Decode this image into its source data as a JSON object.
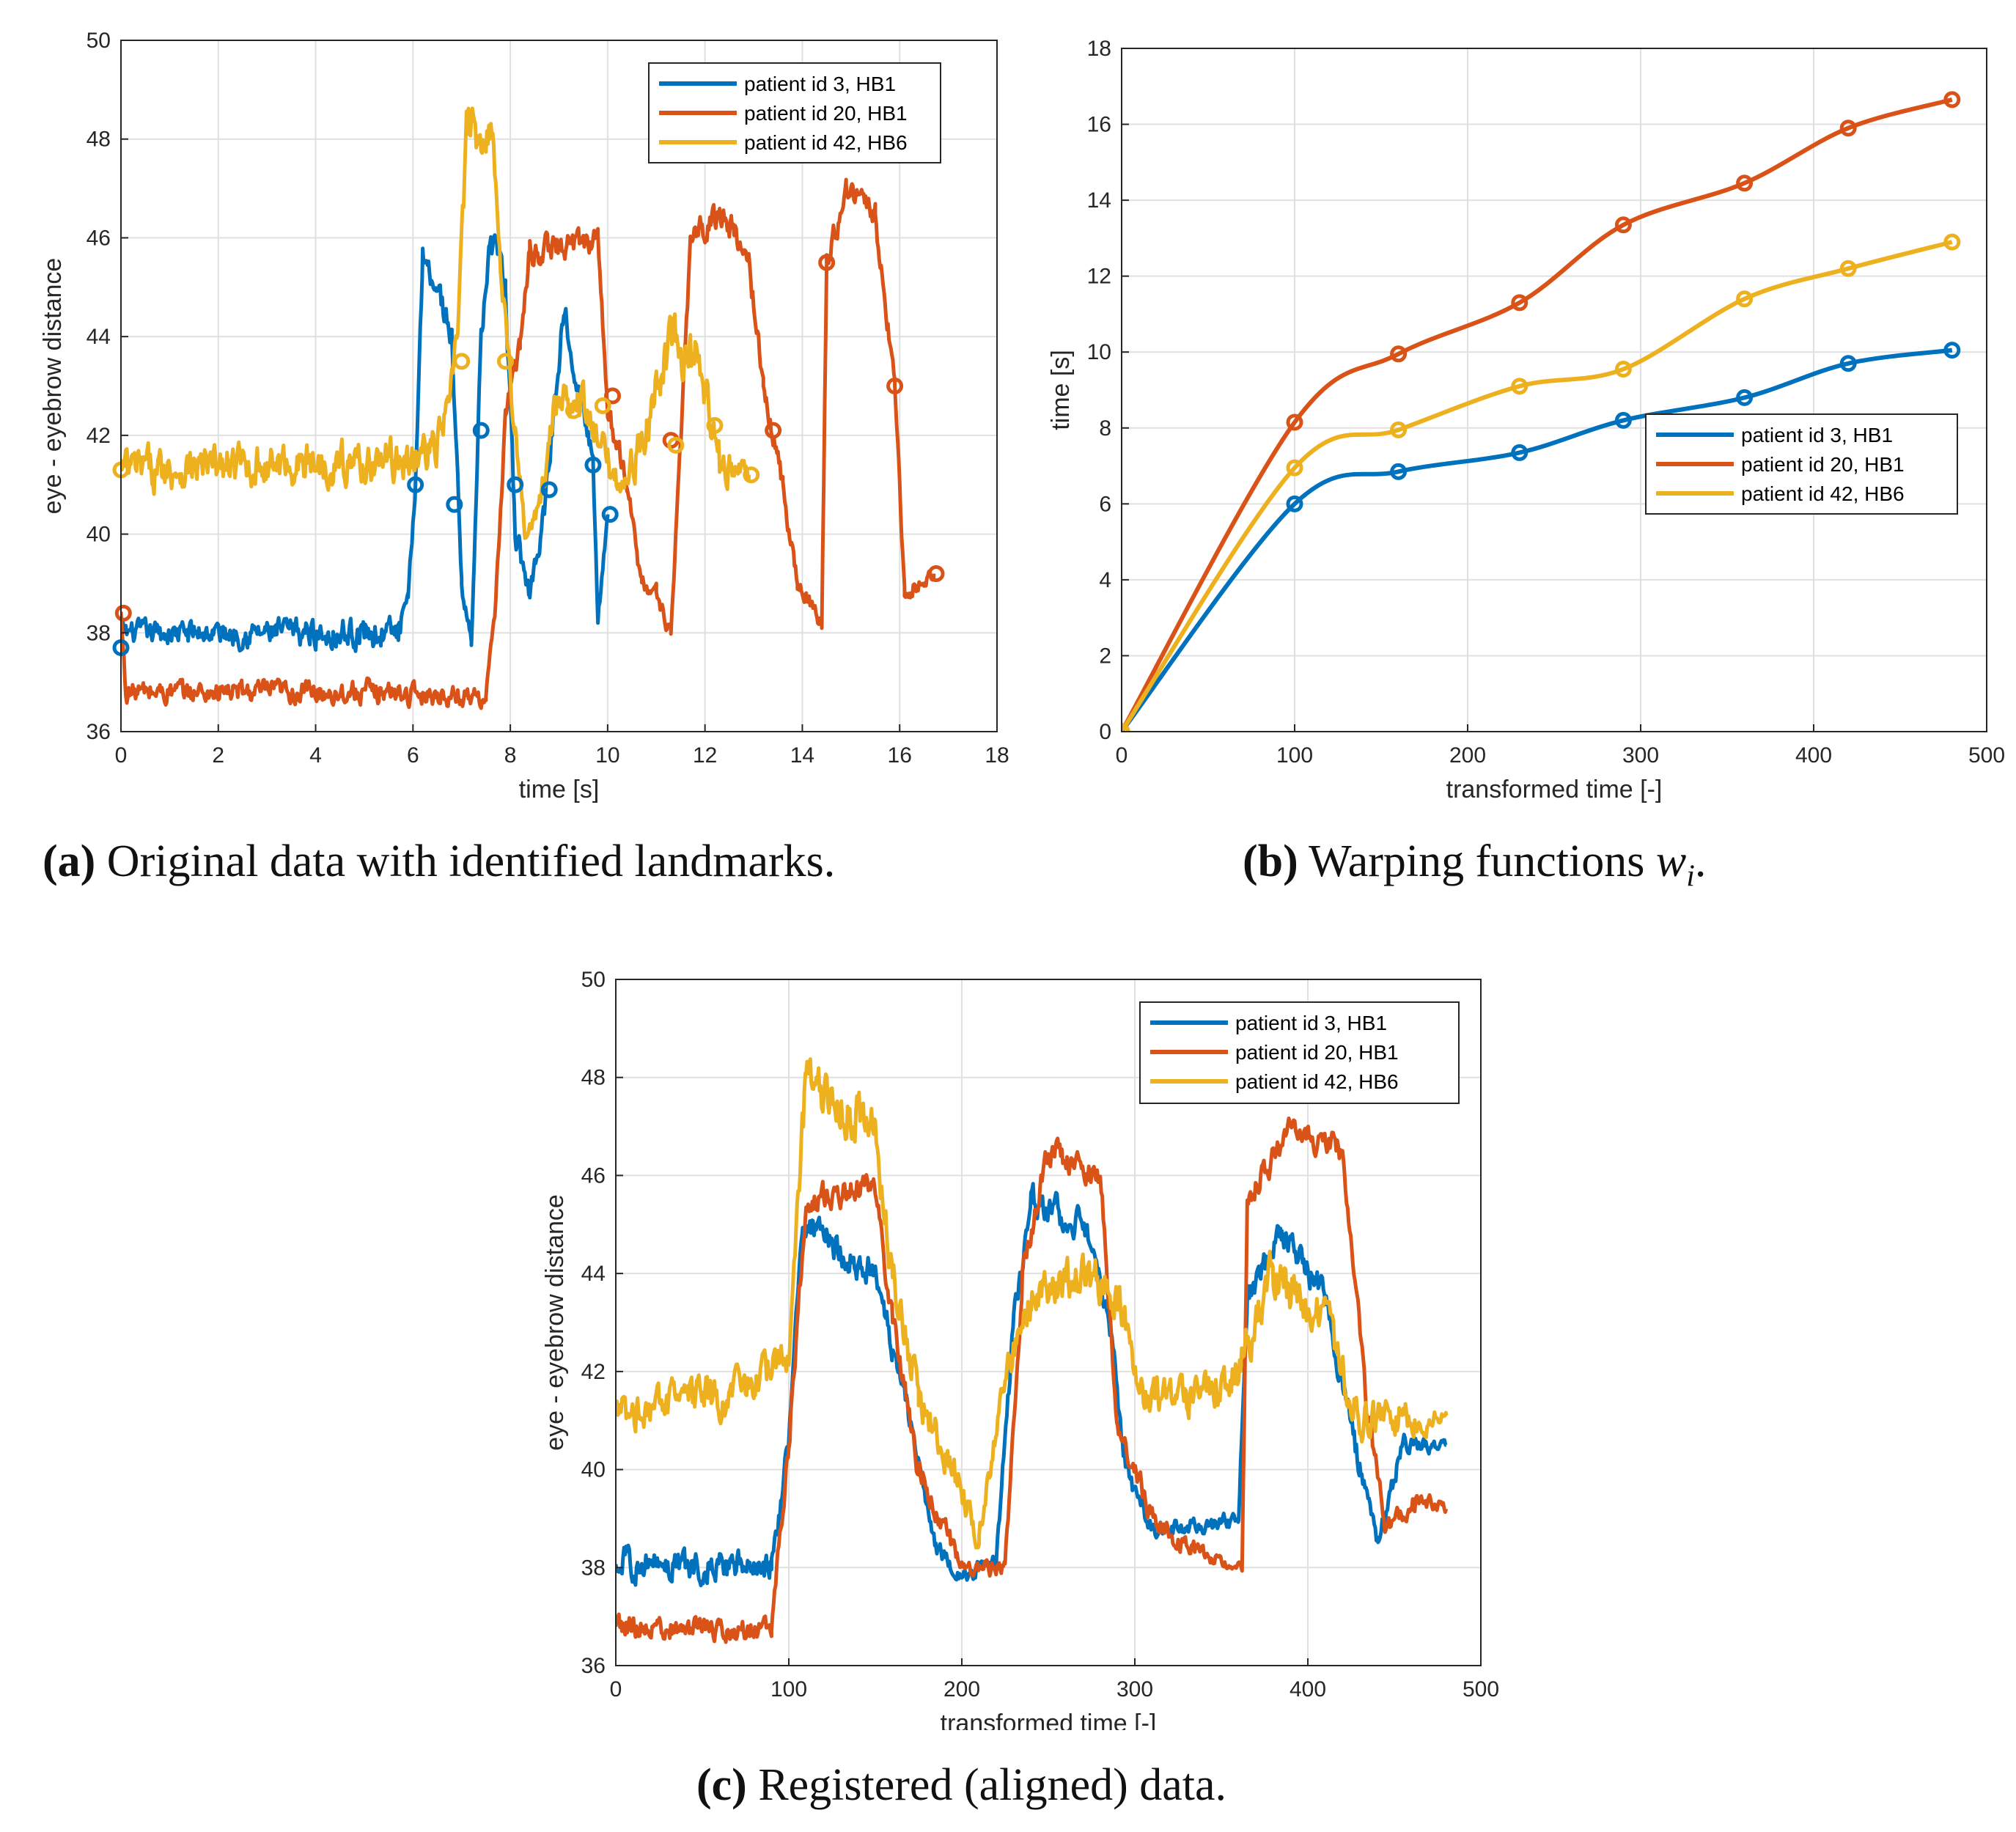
{
  "colors": {
    "blue": "#0072bd",
    "orange": "#d95319",
    "yellow": "#edb120",
    "grid": "#e0e0e0",
    "axis": "#262626"
  },
  "legend": [
    "patient id 3, HB1",
    "patient id 20, HB1",
    "patient id 42, HB6"
  ],
  "captions": {
    "a": {
      "label": "(a)",
      "text": " Original data with identified landmarks."
    },
    "b": {
      "label": "(b)",
      "text": " Warping functions ",
      "math": "w",
      "sub": "i",
      "end": "."
    },
    "c": {
      "label": "(c)",
      "text": " Registered (aligned) data."
    }
  },
  "chart_data": [
    {
      "id": "a",
      "type": "line",
      "xlabel": "time [s]",
      "ylabel": "eye - eyebrow distance",
      "xlim": [
        0,
        18
      ],
      "ylim": [
        36,
        50
      ],
      "xticks": [
        0,
        2,
        4,
        6,
        8,
        10,
        12,
        14,
        16,
        18
      ],
      "yticks": [
        36,
        38,
        40,
        42,
        44,
        46,
        48,
        50
      ],
      "grid": true,
      "legend_position": "top-right",
      "series": [
        {
          "name": "patient id 3, HB1",
          "color": "#0072bd",
          "segments": [
            [
              0,
              38.0,
              0.25
            ],
            [
              5.7,
              38.0,
              0.35
            ],
            [
              5.9,
              38.6,
              0.2
            ],
            [
              6.05,
              41.0,
              0.2
            ],
            [
              6.2,
              45.7,
              0.3
            ],
            [
              6.5,
              45.0,
              0.35
            ],
            [
              6.8,
              44.0,
              0.3
            ],
            [
              7.0,
              39.0,
              0.2
            ],
            [
              7.2,
              37.8,
              0.15
            ],
            [
              7.4,
              44.0,
              0.25
            ],
            [
              7.6,
              46.0,
              0.3
            ],
            [
              7.9,
              45.0,
              0.3
            ],
            [
              8.1,
              40.0,
              0.3
            ],
            [
              8.4,
              38.8,
              0.3
            ],
            [
              8.7,
              40.5,
              0.3
            ],
            [
              9.1,
              44.6,
              0.3
            ],
            [
              9.4,
              43.0,
              0.25
            ],
            [
              9.7,
              41.5,
              0.2
            ],
            [
              9.8,
              38.3,
              0.2
            ],
            [
              10.0,
              40.4,
              0.1
            ]
          ],
          "landmarks": [
            [
              0,
              37.7
            ],
            [
              6.05,
              41.0
            ],
            [
              6.85,
              40.6
            ],
            [
              7.4,
              42.1
            ],
            [
              8.1,
              41.0
            ],
            [
              8.8,
              40.9
            ],
            [
              9.7,
              41.4
            ],
            [
              10.05,
              40.4
            ]
          ]
        },
        {
          "name": "patient id 20, HB1",
          "color": "#d95319",
          "segments": [
            [
              0,
              38.4,
              0.1
            ],
            [
              0.1,
              36.8,
              0.25
            ],
            [
              5.3,
              36.8,
              0.25
            ],
            [
              7.5,
              36.7,
              0.2
            ],
            [
              7.7,
              38.5,
              0.2
            ],
            [
              7.9,
              42.5,
              0.25
            ],
            [
              8.2,
              43.8,
              0.25
            ],
            [
              8.4,
              45.7,
              0.3
            ],
            [
              9.8,
              46.0,
              0.3
            ],
            [
              10.0,
              42.5,
              0.25
            ],
            [
              10.4,
              41.0,
              0.25
            ],
            [
              10.7,
              39.0,
              0.2
            ],
            [
              11.0,
              38.8,
              0.2
            ],
            [
              11.3,
              38.0,
              0.2
            ],
            [
              11.5,
              41.8,
              0.2
            ],
            [
              11.7,
              46.0,
              0.3
            ],
            [
              12.4,
              46.5,
              0.3
            ],
            [
              12.9,
              45.5,
              0.3
            ],
            [
              13.2,
              43.0,
              0.25
            ],
            [
              13.6,
              41.0,
              0.25
            ],
            [
              13.9,
              39.0,
              0.2
            ],
            [
              14.4,
              38.2,
              0.15
            ],
            [
              14.5,
              45.5,
              0.3
            ],
            [
              14.9,
              47.0,
              0.3
            ],
            [
              15.5,
              46.5,
              0.3
            ],
            [
              15.9,
              43.0,
              0.25
            ],
            [
              16.1,
              38.8,
              0.2
            ],
            [
              16.4,
              39.0,
              0.2
            ],
            [
              16.7,
              39.2,
              0.1
            ]
          ],
          "landmarks": [
            [
              0.05,
              38.4
            ],
            [
              10.1,
              42.8
            ],
            [
              11.3,
              41.9
            ],
            [
              13.4,
              42.1
            ],
            [
              14.5,
              45.5
            ],
            [
              15.9,
              43.0
            ],
            [
              16.75,
              39.2
            ]
          ]
        },
        {
          "name": "patient id 42, HB6",
          "color": "#edb120",
          "segments": [
            [
              0,
              41.3,
              0.45
            ],
            [
              6.0,
              41.5,
              0.45
            ],
            [
              6.5,
              41.8,
              0.4
            ],
            [
              6.7,
              42.5,
              0.4
            ],
            [
              6.9,
              43.8,
              0.4
            ],
            [
              7.1,
              48.0,
              0.6
            ],
            [
              7.6,
              48.3,
              0.6
            ],
            [
              7.85,
              45.0,
              0.4
            ],
            [
              8.1,
              42.0,
              0.35
            ],
            [
              8.3,
              40.0,
              0.3
            ],
            [
              8.6,
              40.5,
              0.3
            ],
            [
              8.9,
              42.5,
              0.4
            ],
            [
              9.4,
              43.0,
              0.5
            ],
            [
              9.7,
              42.0,
              0.4
            ],
            [
              10.3,
              41.0,
              0.4
            ],
            [
              10.8,
              42.0,
              0.5
            ],
            [
              11.0,
              43.0,
              0.5
            ],
            [
              11.3,
              43.8,
              0.6
            ],
            [
              11.8,
              43.5,
              0.6
            ],
            [
              12.3,
              41.5,
              0.45
            ],
            [
              12.9,
              41.2,
              0.2
            ]
          ],
          "landmarks": [
            [
              0,
              41.3
            ],
            [
              7.0,
              43.5
            ],
            [
              7.9,
              43.5
            ],
            [
              9.3,
              42.5
            ],
            [
              9.9,
              42.6
            ],
            [
              11.4,
              41.8
            ],
            [
              12.2,
              42.2
            ],
            [
              12.95,
              41.2
            ]
          ]
        }
      ]
    },
    {
      "id": "b",
      "type": "line",
      "xlabel": "transformed time [-]",
      "ylabel": "time [s]",
      "xlim": [
        0,
        500
      ],
      "ylim": [
        0,
        18
      ],
      "xticks": [
        0,
        100,
        200,
        300,
        400,
        500
      ],
      "yticks": [
        0,
        2,
        4,
        6,
        8,
        10,
        12,
        14,
        16,
        18
      ],
      "grid": true,
      "legend_position": "bottom-right",
      "series": [
        {
          "name": "patient id 3, HB1",
          "color": "#0072bd",
          "x": [
            0,
            100,
            160,
            230,
            290,
            360,
            420,
            480
          ],
          "y": [
            0,
            6.0,
            6.85,
            7.35,
            8.2,
            8.8,
            9.7,
            10.05
          ]
        },
        {
          "name": "patient id 20, HB1",
          "color": "#d95319",
          "x": [
            0,
            100,
            160,
            230,
            290,
            360,
            420,
            480
          ],
          "y": [
            0,
            8.15,
            9.95,
            11.3,
            13.35,
            14.45,
            15.9,
            16.65
          ]
        },
        {
          "name": "patient id 42, HB6",
          "color": "#edb120",
          "x": [
            0,
            100,
            160,
            230,
            290,
            360,
            420,
            480
          ],
          "y": [
            0,
            6.95,
            7.95,
            9.1,
            9.55,
            11.4,
            12.2,
            12.9
          ]
        }
      ]
    },
    {
      "id": "c",
      "type": "line",
      "xlabel": "transformed time [-]",
      "ylabel": "eye - eyebrow distance",
      "xlim": [
        0,
        500
      ],
      "ylim": [
        36,
        50
      ],
      "xticks": [
        0,
        100,
        200,
        300,
        400,
        500
      ],
      "yticks": [
        36,
        38,
        40,
        42,
        44,
        46,
        48,
        50
      ],
      "grid": true,
      "legend_position": "top-right",
      "series": [
        {
          "name": "patient id 3, HB1",
          "color": "#0072bd",
          "segments": [
            [
              0,
              38.1,
              0.35
            ],
            [
              90,
              38.0,
              0.35
            ],
            [
              100,
              40.5,
              0.3
            ],
            [
              108,
              45.0,
              0.35
            ],
            [
              150,
              44.0,
              0.35
            ],
            [
              170,
              41.0,
              0.3
            ],
            [
              185,
              38.4,
              0.2
            ],
            [
              200,
              37.8,
              0.15
            ],
            [
              220,
              38.2,
              0.2
            ],
            [
              230,
              43.0,
              0.3
            ],
            [
              240,
              45.5,
              0.35
            ],
            [
              270,
              45.0,
              0.35
            ],
            [
              285,
              43.0,
              0.3
            ],
            [
              295,
              40.0,
              0.3
            ],
            [
              310,
              38.8,
              0.2
            ],
            [
              360,
              38.9,
              0.2
            ],
            [
              365,
              43.5,
              0.3
            ],
            [
              385,
              44.8,
              0.35
            ],
            [
              410,
              43.5,
              0.35
            ],
            [
              430,
              40.0,
              0.3
            ],
            [
              440,
              38.5,
              0.2
            ],
            [
              455,
              40.5,
              0.25
            ],
            [
              480,
              40.5,
              0.1
            ]
          ]
        },
        {
          "name": "patient id 20, HB1",
          "color": "#d95319",
          "segments": [
            [
              0,
              36.8,
              0.25
            ],
            [
              90,
              36.7,
              0.25
            ],
            [
              100,
              40.5,
              0.3
            ],
            [
              110,
              45.5,
              0.3
            ],
            [
              150,
              45.8,
              0.3
            ],
            [
              160,
              43.0,
              0.3
            ],
            [
              175,
              40.0,
              0.3
            ],
            [
              200,
              38.0,
              0.2
            ],
            [
              225,
              38.0,
              0.2
            ],
            [
              235,
              44.0,
              0.3
            ],
            [
              250,
              46.5,
              0.3
            ],
            [
              280,
              46.0,
              0.3
            ],
            [
              290,
              41.0,
              0.3
            ],
            [
              310,
              39.0,
              0.25
            ],
            [
              340,
              38.2,
              0.2
            ],
            [
              362,
              38.0,
              0.1
            ],
            [
              365,
              45.5,
              0.3
            ],
            [
              390,
              47.0,
              0.3
            ],
            [
              420,
              46.5,
              0.3
            ],
            [
              435,
              41.0,
              0.3
            ],
            [
              445,
              38.8,
              0.25
            ],
            [
              465,
              39.5,
              0.25
            ],
            [
              480,
              39.2,
              0.1
            ]
          ]
        },
        {
          "name": "patient id 42, HB6",
          "color": "#edb120",
          "segments": [
            [
              0,
              41.2,
              0.45
            ],
            [
              80,
              41.6,
              0.45
            ],
            [
              100,
              42.5,
              0.4
            ],
            [
              110,
              48.0,
              0.6
            ],
            [
              150,
              47.0,
              0.6
            ],
            [
              160,
              44.0,
              0.45
            ],
            [
              175,
              41.5,
              0.4
            ],
            [
              195,
              40.0,
              0.4
            ],
            [
              210,
              38.6,
              0.3
            ],
            [
              225,
              42.0,
              0.4
            ],
            [
              240,
              43.5,
              0.4
            ],
            [
              270,
              44.0,
              0.5
            ],
            [
              290,
              43.5,
              0.45
            ],
            [
              305,
              41.5,
              0.4
            ],
            [
              330,
              41.5,
              0.45
            ],
            [
              360,
              42.0,
              0.5
            ],
            [
              380,
              44.0,
              0.6
            ],
            [
              410,
              43.0,
              0.5
            ],
            [
              430,
              41.0,
              0.45
            ],
            [
              460,
              41.0,
              0.45
            ],
            [
              480,
              41.1,
              0.1
            ]
          ]
        }
      ]
    }
  ]
}
